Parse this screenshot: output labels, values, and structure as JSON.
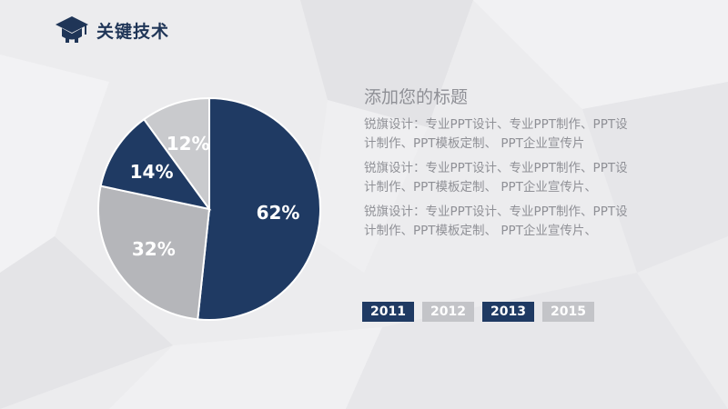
{
  "header": {
    "title": "关键技术",
    "icon": "graduation-cap-icon"
  },
  "colors": {
    "navy": "#1f3a63",
    "gray": "#b5b6ba",
    "light_gray": "#c9cacd",
    "text_gray": "#8f9096"
  },
  "chart_data": {
    "type": "pie",
    "title": "",
    "labels": [
      "62%",
      "32%",
      "14%",
      "12%"
    ],
    "values": [
      62,
      32,
      14,
      12
    ],
    "colors": [
      "#1f3a63",
      "#b5b6ba",
      "#1f3a63",
      "#c9cacd"
    ],
    "label_colors": [
      "#ffffff",
      "#ffffff",
      "#ffffff",
      "#ffffff"
    ]
  },
  "content": {
    "heading": "添加您的标题",
    "paragraphs": [
      "锐旗设计：专业PPT设计、专业PPT制作、PPT设计制作、PPT模板定制、 PPT企业宣传片",
      "锐旗设计：专业PPT设计、专业PPT制作、PPT设计制作、PPT模板定制、 PPT企业宣传片、",
      "锐旗设计：专业PPT设计、专业PPT制作、PPT设计制作、PPT模板定制、 PPT企业宣传片、"
    ]
  },
  "years": [
    {
      "label": "2011",
      "style": "dark"
    },
    {
      "label": "2012",
      "style": "light"
    },
    {
      "label": "2013",
      "style": "dark"
    },
    {
      "label": "2015",
      "style": "light"
    }
  ]
}
